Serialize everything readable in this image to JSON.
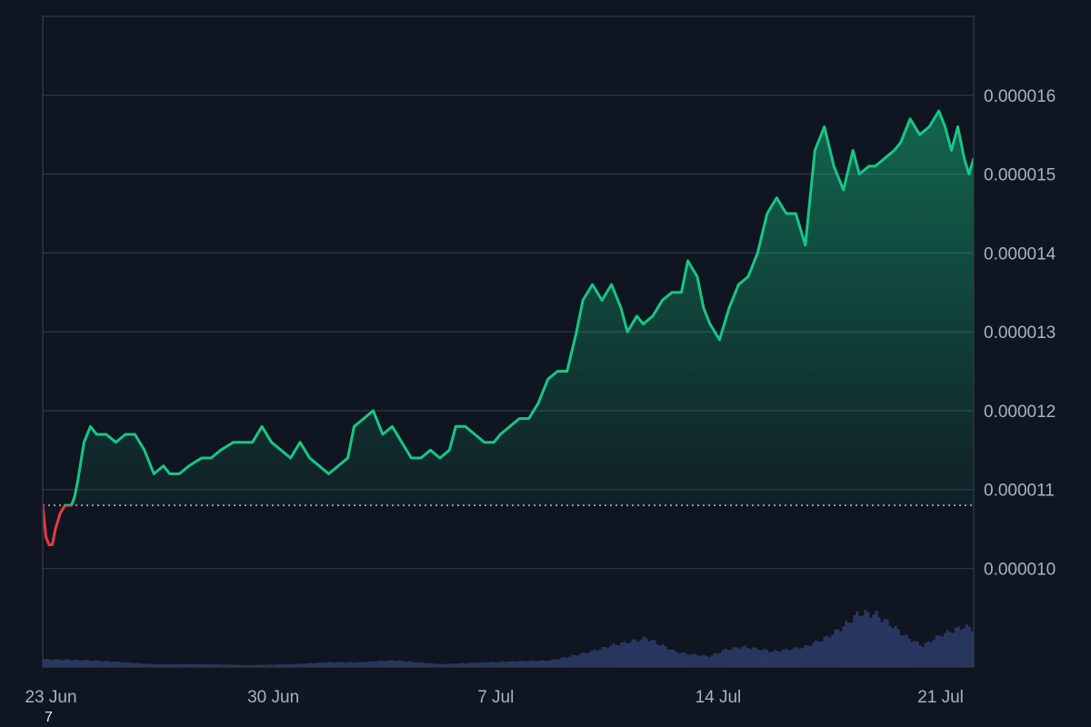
{
  "chart_data": {
    "type": "area",
    "x_axis": {
      "tick_labels": [
        "23 Jun",
        "30 Jun",
        "7 Jul",
        "14 Jul",
        "21 Jul"
      ],
      "tick_days_from_23_jun": [
        0,
        7,
        14,
        21,
        28
      ],
      "range_days_from_23_jun": [
        0,
        29.3
      ]
    },
    "y_axis": {
      "tick_labels": [
        "0.000010",
        "0.000011",
        "0.000012",
        "0.000013",
        "0.000014",
        "0.000015",
        "0.000016"
      ],
      "tick_values": [
        1e-05,
        1.1e-05,
        1.2e-05,
        1.3e-05,
        1.4e-05,
        1.5e-05,
        1.6e-05
      ],
      "ylim": [
        8.75e-06,
        1.7e-05
      ],
      "position": "right"
    },
    "baseline_value": 1.08e-05,
    "colors": {
      "above_baseline": "#16c784",
      "below_baseline": "#ea3943",
      "volume": "#2a3760"
    },
    "series": [
      {
        "x": [
          0,
          0.1,
          0.2,
          0.3,
          0.4,
          0.55,
          0.7,
          0.9,
          1.0,
          1.1,
          1.3,
          1.5,
          1.7,
          2.0,
          2.3,
          2.6,
          2.9,
          3.2,
          3.5,
          3.8,
          4.0,
          4.3,
          4.6,
          5.0,
          5.3,
          5.6,
          6.0,
          6.3,
          6.6,
          6.9,
          7.2,
          7.5,
          7.8,
          8.1,
          8.4,
          8.7,
          9.0,
          9.3,
          9.6,
          9.8,
          10.1,
          10.4,
          10.7,
          11.0,
          11.3,
          11.6,
          11.9,
          12.2,
          12.5,
          12.8,
          13.0,
          13.3,
          13.6,
          13.9,
          14.2,
          14.4,
          14.7,
          15.0,
          15.3,
          15.6,
          15.9,
          16.2,
          16.5,
          16.8,
          17.0,
          17.3,
          17.6,
          17.9,
          18.2,
          18.4,
          18.7,
          18.9,
          19.2,
          19.5,
          19.8,
          20.1,
          20.3,
          20.6,
          20.8,
          21.0,
          21.3,
          21.6,
          21.9,
          22.2,
          22.5,
          22.8,
          23.1,
          23.4,
          23.7,
          24.0,
          24.3,
          24.6,
          24.9,
          25.2,
          25.5,
          25.7,
          26.0,
          26.2,
          26.5,
          26.8,
          27.0,
          27.3,
          27.6,
          27.9,
          28.2,
          28.4,
          28.6,
          28.8,
          29.0,
          29.15,
          29.3
        ],
        "y": [
          1.08e-05,
          1.04e-05,
          1.03e-05,
          1.03e-05,
          1.05e-05,
          1.07e-05,
          1.08e-05,
          1.08e-05,
          1.09e-05,
          1.11e-05,
          1.16e-05,
          1.18e-05,
          1.17e-05,
          1.17e-05,
          1.16e-05,
          1.17e-05,
          1.17e-05,
          1.15e-05,
          1.12e-05,
          1.13e-05,
          1.12e-05,
          1.12e-05,
          1.13e-05,
          1.14e-05,
          1.14e-05,
          1.15e-05,
          1.16e-05,
          1.16e-05,
          1.16e-05,
          1.18e-05,
          1.16e-05,
          1.15e-05,
          1.14e-05,
          1.16e-05,
          1.14e-05,
          1.13e-05,
          1.12e-05,
          1.13e-05,
          1.14e-05,
          1.18e-05,
          1.19e-05,
          1.2e-05,
          1.17e-05,
          1.18e-05,
          1.16e-05,
          1.14e-05,
          1.14e-05,
          1.15e-05,
          1.14e-05,
          1.15e-05,
          1.18e-05,
          1.18e-05,
          1.17e-05,
          1.16e-05,
          1.16e-05,
          1.17e-05,
          1.18e-05,
          1.19e-05,
          1.19e-05,
          1.21e-05,
          1.24e-05,
          1.25e-05,
          1.25e-05,
          1.3e-05,
          1.34e-05,
          1.36e-05,
          1.34e-05,
          1.36e-05,
          1.33e-05,
          1.3e-05,
          1.32e-05,
          1.31e-05,
          1.32e-05,
          1.34e-05,
          1.35e-05,
          1.35e-05,
          1.39e-05,
          1.37e-05,
          1.33e-05,
          1.31e-05,
          1.29e-05,
          1.33e-05,
          1.36e-05,
          1.37e-05,
          1.4e-05,
          1.45e-05,
          1.47e-05,
          1.45e-05,
          1.45e-05,
          1.41e-05,
          1.53e-05,
          1.56e-05,
          1.51e-05,
          1.48e-05,
          1.53e-05,
          1.5e-05,
          1.51e-05,
          1.51e-05,
          1.52e-05,
          1.53e-05,
          1.54e-05,
          1.57e-05,
          1.55e-05,
          1.56e-05,
          1.58e-05,
          1.56e-05,
          1.53e-05,
          1.56e-05,
          1.52e-05,
          1.5e-05,
          1.52e-05
        ]
      },
      {
        "x": [
          0,
          1.5,
          2.5,
          3.5,
          5,
          6.5,
          8,
          9,
          10,
          11,
          12.5,
          14,
          15,
          16,
          17,
          18,
          19,
          20,
          21,
          21.5,
          22,
          22.5,
          23,
          24,
          24.7,
          25.2,
          25.7,
          26.2,
          26.7,
          27.2,
          27.7,
          28.3,
          29.0,
          29.3
        ],
        "y": [
          0.08,
          0.07,
          0.05,
          0.03,
          0.03,
          0.02,
          0.03,
          0.05,
          0.05,
          0.07,
          0.03,
          0.05,
          0.06,
          0.07,
          0.14,
          0.23,
          0.3,
          0.15,
          0.11,
          0.18,
          0.21,
          0.19,
          0.16,
          0.21,
          0.31,
          0.42,
          0.56,
          0.55,
          0.44,
          0.31,
          0.22,
          0.34,
          0.42,
          0.4
        ]
      }
    ]
  },
  "stray_label": "7"
}
